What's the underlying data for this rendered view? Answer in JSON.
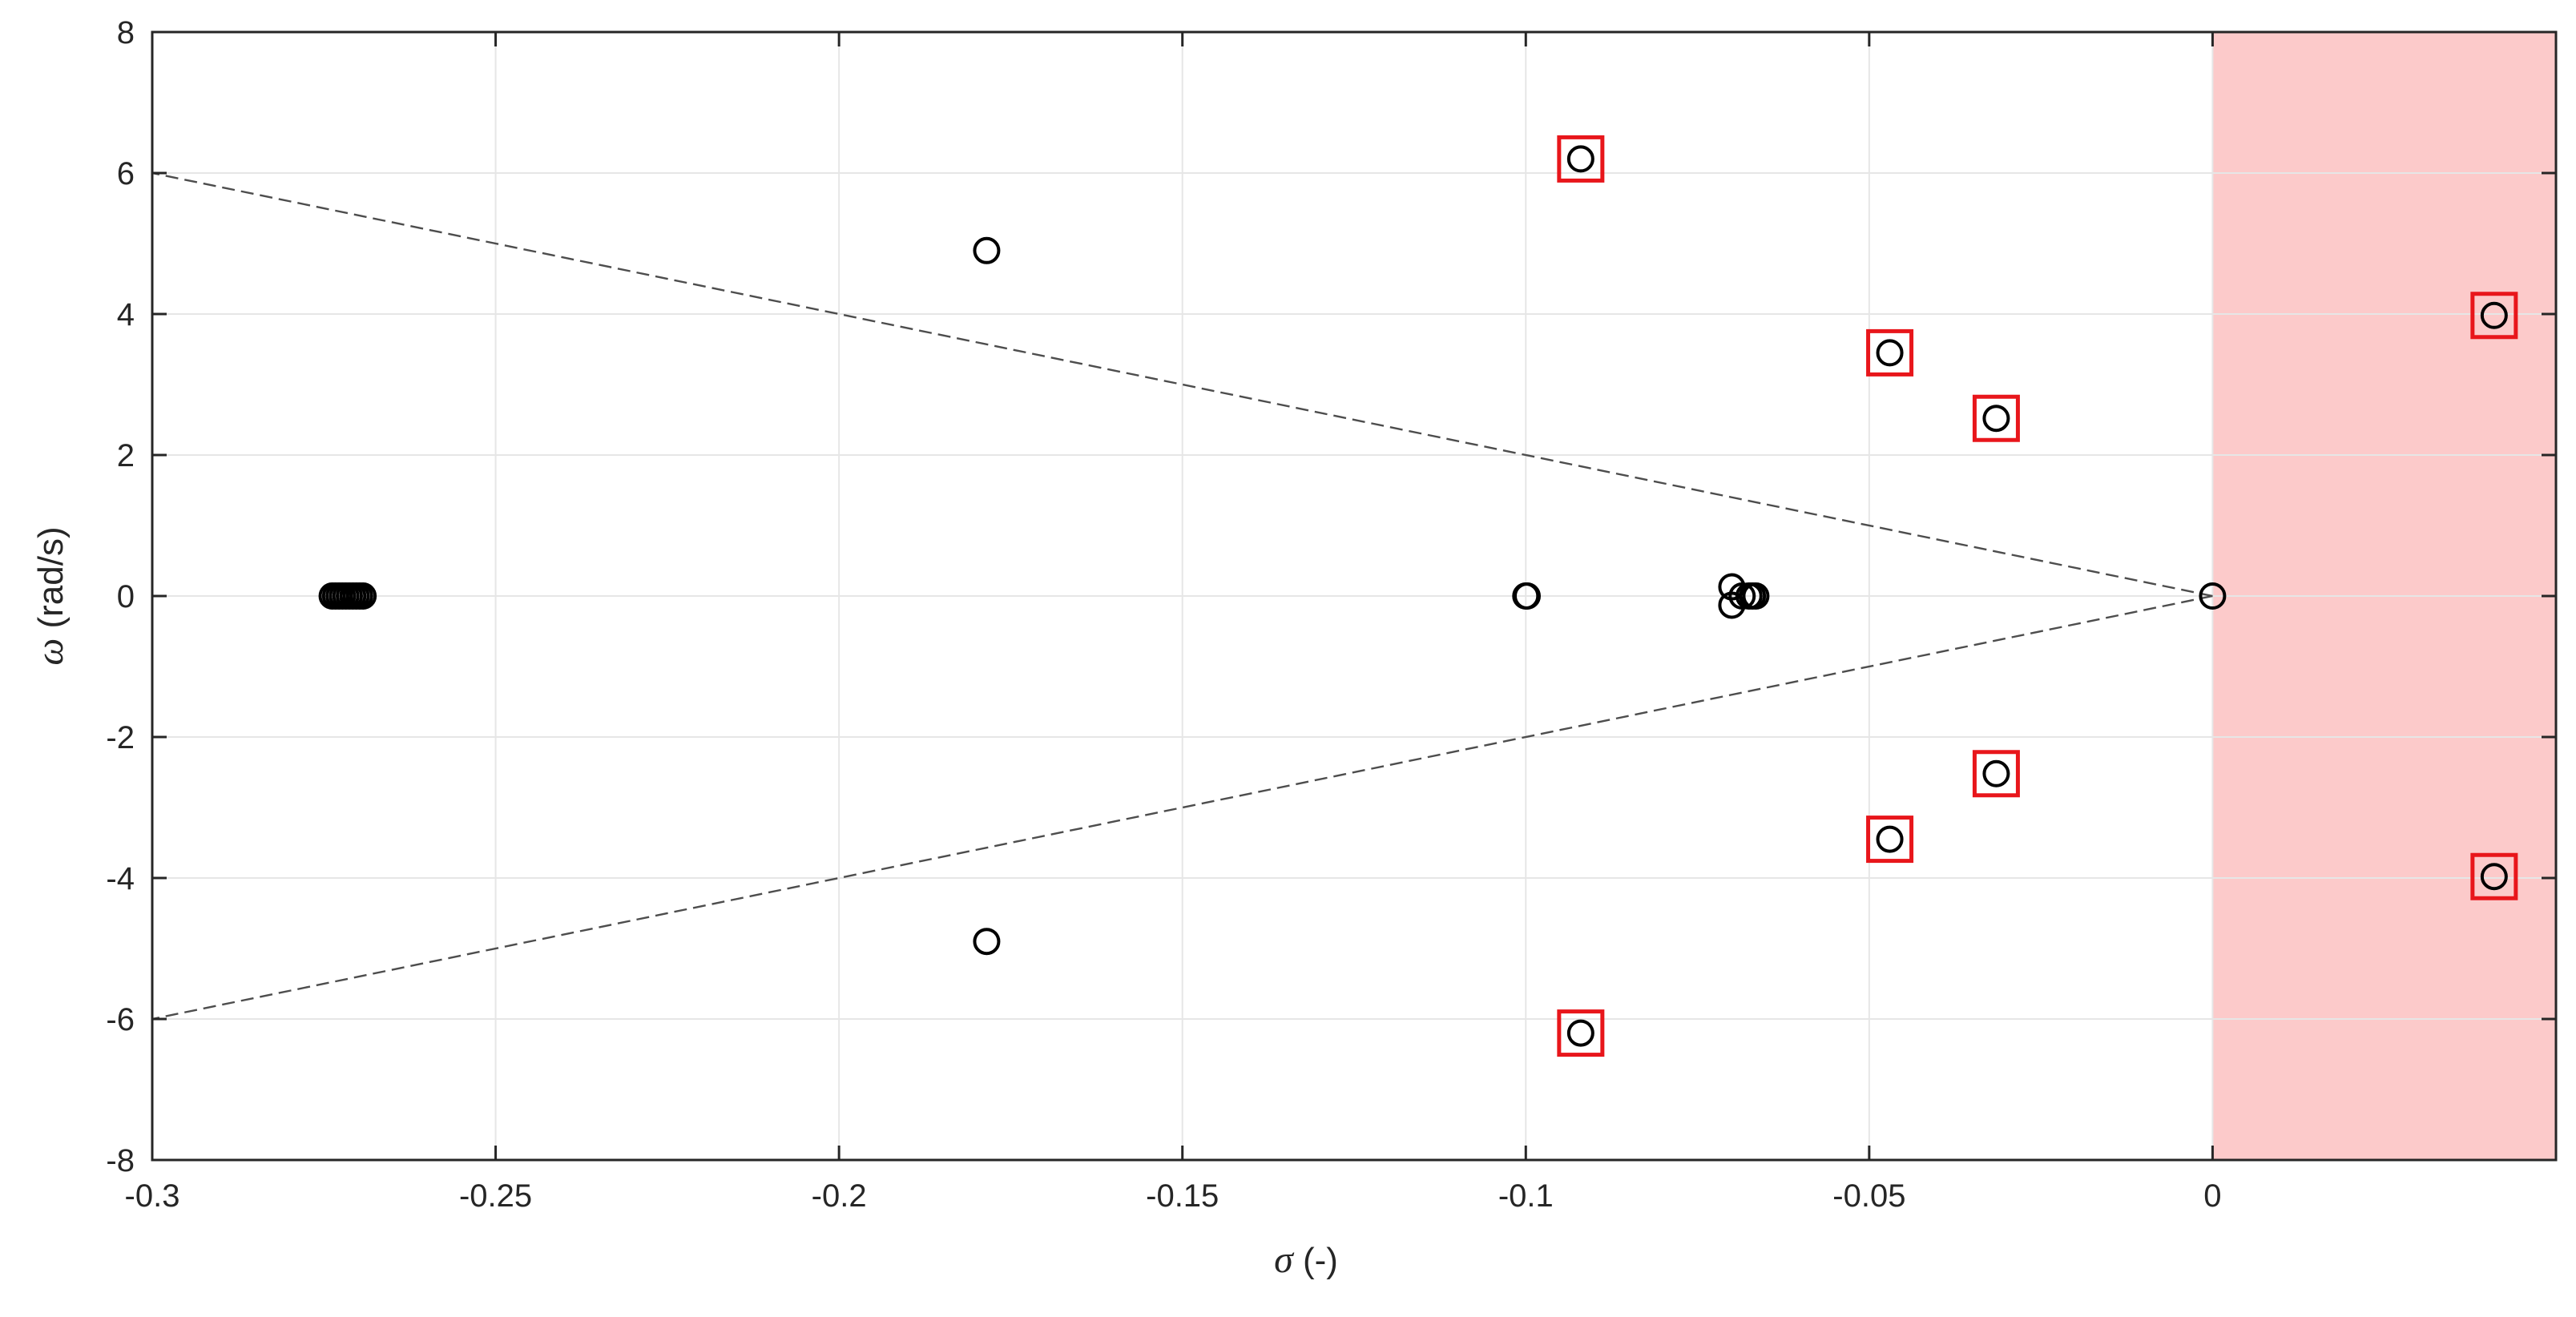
{
  "chart_data": {
    "type": "scatter",
    "xlabel_symbol": "σ",
    "xlabel_unit": " (-)",
    "ylabel_symbol": "ω",
    "ylabel_unit": " (rad/s)",
    "xlim": [
      -0.3,
      0.05
    ],
    "ylim": [
      -8,
      8
    ],
    "xticks": [
      -0.3,
      -0.25,
      -0.2,
      -0.15,
      -0.1,
      -0.05,
      0
    ],
    "xtick_labels": [
      "-0.3",
      "-0.25",
      "-0.2",
      "-0.15",
      "-0.1",
      "-0.05",
      "0"
    ],
    "yticks": [
      -8,
      -6,
      -4,
      -2,
      0,
      2,
      4,
      6,
      8
    ],
    "ytick_labels": [
      "-8",
      "-6",
      "-4",
      "-2",
      "0",
      "2",
      "4",
      "6",
      "8"
    ],
    "grid": true,
    "unstable_region": {
      "x_from": 0,
      "x_to": 0.05,
      "color": "#fccaca"
    },
    "damping_lines": [
      {
        "x": [
          0,
          -0.3
        ],
        "y": [
          0,
          6
        ]
      },
      {
        "x": [
          0,
          -0.3
        ],
        "y": [
          0,
          -6
        ]
      }
    ],
    "poles": [
      {
        "x": -0.2738,
        "y": 0
      },
      {
        "x": -0.2733,
        "y": 0
      },
      {
        "x": -0.2728,
        "y": 0
      },
      {
        "x": -0.2723,
        "y": 0
      },
      {
        "x": -0.2718,
        "y": 0
      },
      {
        "x": -0.2713,
        "y": 0
      },
      {
        "x": -0.2708,
        "y": 0
      },
      {
        "x": -0.2703,
        "y": 0
      },
      {
        "x": -0.2698,
        "y": 0
      },
      {
        "x": -0.2693,
        "y": 0
      },
      {
        "x": -0.1785,
        "y": 4.9
      },
      {
        "x": -0.1785,
        "y": -4.9
      },
      {
        "x": -0.1,
        "y": 0
      },
      {
        "x": -0.0998,
        "y": 0
      },
      {
        "x": -0.07,
        "y": 0.13
      },
      {
        "x": -0.07,
        "y": -0.13
      },
      {
        "x": -0.0685,
        "y": 0
      },
      {
        "x": -0.0675,
        "y": 0
      },
      {
        "x": -0.067,
        "y": 0
      },
      {
        "x": -0.0665,
        "y": 0
      },
      {
        "x": 0,
        "y": 0
      },
      {
        "x": -0.092,
        "y": 6.2
      },
      {
        "x": -0.092,
        "y": -6.2
      },
      {
        "x": -0.047,
        "y": 3.45
      },
      {
        "x": -0.047,
        "y": -3.45
      },
      {
        "x": -0.0315,
        "y": 2.52
      },
      {
        "x": -0.0315,
        "y": -2.52
      },
      {
        "x": 0.041,
        "y": 3.98
      },
      {
        "x": 0.041,
        "y": -3.98
      }
    ],
    "highlighted": [
      {
        "x": -0.092,
        "y": 6.2
      },
      {
        "x": -0.092,
        "y": -6.2
      },
      {
        "x": -0.047,
        "y": 3.45
      },
      {
        "x": -0.047,
        "y": -3.45
      },
      {
        "x": -0.0315,
        "y": 2.52
      },
      {
        "x": -0.0315,
        "y": -2.52
      },
      {
        "x": 0.041,
        "y": 3.98
      },
      {
        "x": 0.041,
        "y": -3.98
      }
    ],
    "colors": {
      "marker": "#000000",
      "highlight": "#e8161b",
      "grid": "#e6e6e6",
      "axis": "#262626",
      "damping_line": "#4d4d4d"
    }
  }
}
